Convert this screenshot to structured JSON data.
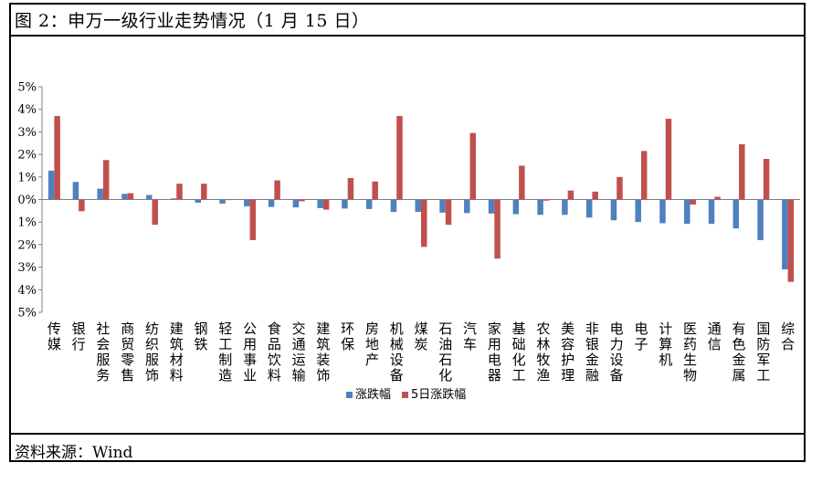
{
  "title": "图 2：申万一级行业走势情况（1 月 15 日）",
  "source": "资料来源：Wind",
  "chart_data": {
    "type": "bar",
    "title": "",
    "xlabel": "",
    "ylabel": "",
    "ylim": [
      -5,
      5
    ],
    "yticks": [
      "5%",
      "4%",
      "3%",
      "2%",
      "1%",
      "0%",
      "1%",
      "2%",
      "3%",
      "4%",
      "5%"
    ],
    "categories": [
      "传媒",
      "银行",
      "社会服务",
      "商贸零售",
      "纺织服饰",
      "建筑材料",
      "钢铁",
      "轻工制造",
      "公用事业",
      "食品饮料",
      "交通运输",
      "建筑装饰",
      "环保",
      "房地产",
      "机械设备",
      "煤炭",
      "石油石化",
      "汽车",
      "家用电器",
      "基础化工",
      "农林牧渔",
      "美容护理",
      "非银金融",
      "电力设备",
      "电子",
      "计算机",
      "医药生物",
      "通信",
      "有色金属",
      "国防军工",
      "综合"
    ],
    "series": [
      {
        "name": "涨跌幅",
        "color": "#4f81bd",
        "values": [
          1.28,
          0.78,
          0.48,
          0.25,
          0.2,
          0.05,
          -0.14,
          -0.18,
          -0.3,
          -0.33,
          -0.35,
          -0.38,
          -0.4,
          -0.42,
          -0.55,
          -0.55,
          -0.58,
          -0.6,
          -0.62,
          -0.65,
          -0.68,
          -0.68,
          -0.8,
          -0.92,
          -1.0,
          -1.05,
          -1.08,
          -1.08,
          -1.28,
          -1.8,
          -3.1
        ]
      },
      {
        "name": "5日涨跌幅",
        "color": "#c0504d",
        "values": [
          3.7,
          -0.52,
          1.75,
          0.28,
          -1.12,
          0.7,
          0.7,
          0.0,
          -1.8,
          0.85,
          -0.08,
          -0.45,
          0.95,
          0.8,
          3.7,
          -2.1,
          -1.12,
          2.95,
          -2.62,
          1.5,
          -0.05,
          0.4,
          0.35,
          1.0,
          2.15,
          3.58,
          -0.22,
          0.12,
          2.45,
          1.8,
          -3.65
        ]
      }
    ],
    "legend_position": "bottom",
    "grid": false
  }
}
